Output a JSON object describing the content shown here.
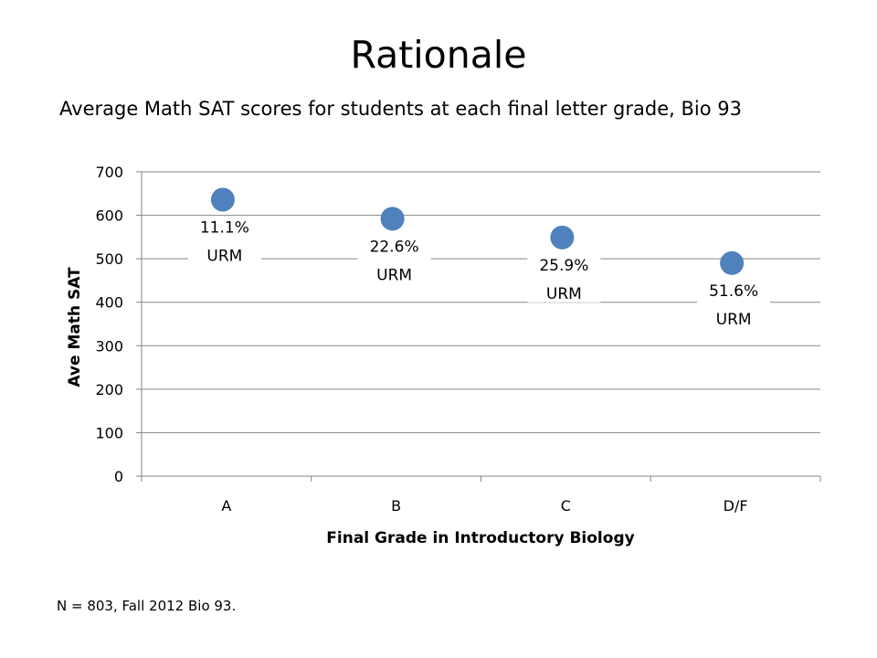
{
  "slide": {
    "title": "Rationale",
    "subtitle": "Average Math SAT scores for students at each final letter grade, Bio 93",
    "footnote": "N = 803, Fall 2012 Bio 93."
  },
  "chart_data": {
    "type": "scatter",
    "title": "",
    "categories": [
      "A",
      "B",
      "C",
      "D/F"
    ],
    "series": [
      {
        "values": [
          636,
          592,
          549,
          490
        ],
        "color": "#4F81BD"
      }
    ],
    "data_labels": [
      [
        "11.1%",
        "URM"
      ],
      [
        "22.6%",
        "URM"
      ],
      [
        "25.9%",
        "URM"
      ],
      [
        "51.6%",
        "URM"
      ]
    ],
    "xlabel": "Final Grade in Introductory Biology",
    "ylabel": "Ave Math SAT",
    "ylim": [
      0,
      700
    ],
    "yticks": [
      0,
      100,
      200,
      300,
      400,
      500,
      600,
      700
    ],
    "grid": true,
    "legend": "none",
    "colors": {
      "grid": "#868686",
      "marker": "#4F81BD"
    }
  }
}
